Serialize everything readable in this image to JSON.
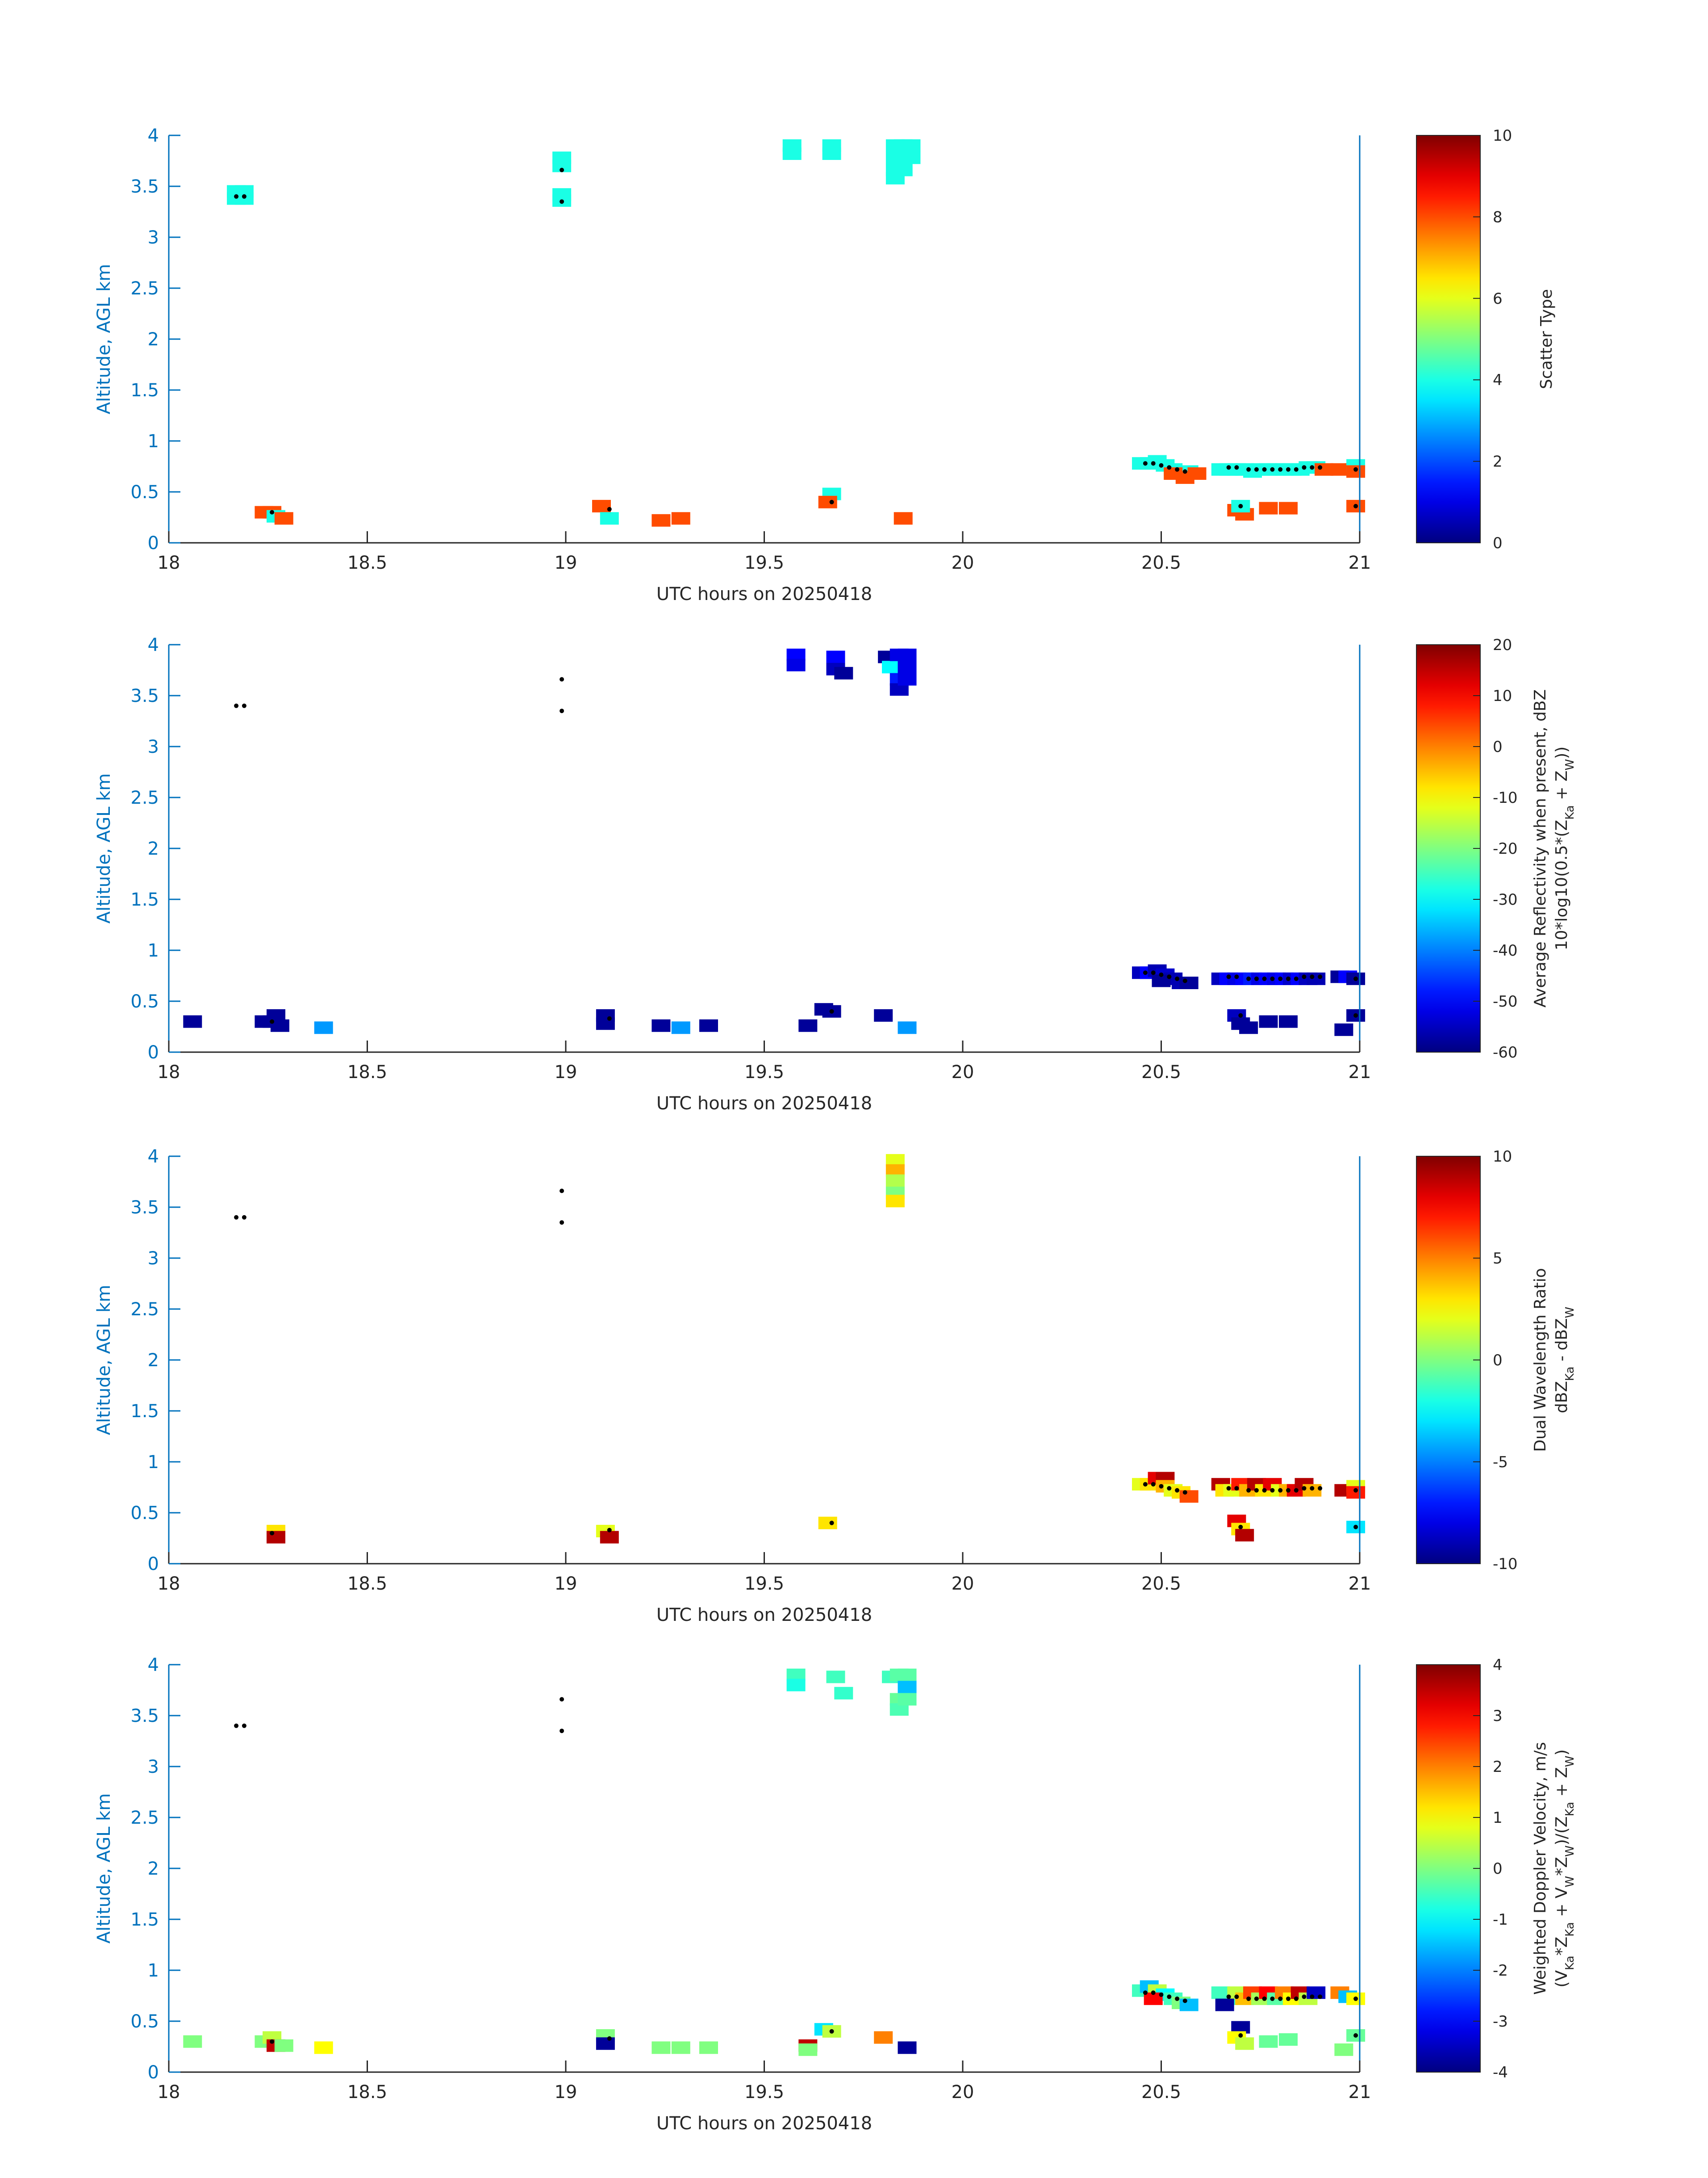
{
  "chart_data": [
    {
      "type": "heatmap",
      "xlabel": "UTC hours on 20250418",
      "ylabel": "Altitude, AGL km",
      "xlim": [
        18,
        21
      ],
      "ylim": [
        0,
        4
      ],
      "xticks": [
        "18",
        "18.5",
        "19",
        "19.5",
        "20",
        "20.5",
        "21"
      ],
      "yticks": [
        "0",
        "0.5",
        "1",
        "1.5",
        "2",
        "2.5",
        "3",
        "3.5",
        "4"
      ],
      "colorbar": {
        "label": [
          "Scatter Type"
        ],
        "range": [
          0,
          10
        ],
        "ticks": [
          "0",
          "2",
          "4",
          "6",
          "8",
          "10"
        ]
      },
      "cells": [
        [
          18.17,
          3.45,
          4
        ],
        [
          18.19,
          3.45,
          4
        ],
        [
          18.17,
          3.38,
          4
        ],
        [
          18.19,
          3.38,
          4
        ],
        [
          18.24,
          0.3,
          8
        ],
        [
          18.26,
          0.3,
          8
        ],
        [
          18.27,
          0.26,
          4
        ],
        [
          18.29,
          0.24,
          8
        ],
        [
          18.99,
          3.78,
          4
        ],
        [
          18.99,
          3.7,
          4
        ],
        [
          18.99,
          3.42,
          4
        ],
        [
          18.99,
          3.36,
          4
        ],
        [
          19.09,
          0.36,
          8
        ],
        [
          19.11,
          0.24,
          4
        ],
        [
          19.24,
          0.22,
          8
        ],
        [
          19.29,
          0.24,
          8
        ],
        [
          19.57,
          3.9,
          4
        ],
        [
          19.57,
          3.82,
          4
        ],
        [
          19.67,
          3.9,
          4
        ],
        [
          19.67,
          3.82,
          4
        ],
        [
          19.67,
          0.48,
          4
        ],
        [
          19.66,
          0.4,
          8
        ],
        [
          19.83,
          3.9,
          4
        ],
        [
          19.83,
          3.78,
          4
        ],
        [
          19.83,
          3.66,
          4
        ],
        [
          19.83,
          3.58,
          4
        ],
        [
          19.85,
          3.9,
          4
        ],
        [
          19.85,
          3.78,
          4
        ],
        [
          19.85,
          3.66,
          4
        ],
        [
          19.87,
          3.9,
          4
        ],
        [
          19.87,
          3.78,
          4
        ],
        [
          19.85,
          0.24,
          8
        ],
        [
          20.45,
          0.78,
          4
        ],
        [
          20.47,
          0.78,
          4
        ],
        [
          20.49,
          0.8,
          4
        ],
        [
          20.51,
          0.76,
          4
        ],
        [
          20.53,
          0.72,
          4
        ],
        [
          20.55,
          0.68,
          4
        ],
        [
          20.57,
          0.7,
          4
        ],
        [
          20.53,
          0.68,
          8
        ],
        [
          20.56,
          0.64,
          8
        ],
        [
          20.59,
          0.68,
          8
        ],
        [
          20.65,
          0.72,
          4
        ],
        [
          20.67,
          0.72,
          4
        ],
        [
          20.69,
          0.72,
          4
        ],
        [
          20.71,
          0.72,
          4
        ],
        [
          20.73,
          0.7,
          4
        ],
        [
          20.75,
          0.72,
          4
        ],
        [
          20.77,
          0.72,
          4
        ],
        [
          20.79,
          0.72,
          4
        ],
        [
          20.81,
          0.72,
          4
        ],
        [
          20.83,
          0.72,
          4
        ],
        [
          20.85,
          0.72,
          4
        ],
        [
          20.87,
          0.74,
          4
        ],
        [
          20.89,
          0.74,
          4
        ],
        [
          20.91,
          0.72,
          8
        ],
        [
          20.95,
          0.72,
          8
        ],
        [
          20.99,
          0.76,
          4
        ],
        [
          20.99,
          0.7,
          8
        ],
        [
          20.69,
          0.32,
          8
        ],
        [
          20.71,
          0.28,
          8
        ],
        [
          20.7,
          0.36,
          4
        ],
        [
          20.77,
          0.34,
          8
        ],
        [
          20.82,
          0.34,
          8
        ],
        [
          20.99,
          0.36,
          8
        ]
      ]
    },
    {
      "type": "heatmap",
      "xlabel": "UTC hours on 20250418",
      "ylabel": "Altitude, AGL km",
      "xlim": [
        18,
        21
      ],
      "ylim": [
        0,
        4
      ],
      "xticks": [
        "18",
        "18.5",
        "19",
        "19.5",
        "20",
        "20.5",
        "21"
      ],
      "yticks": [
        "0",
        "0.5",
        "1",
        "1.5",
        "2",
        "2.5",
        "3",
        "3.5",
        "4"
      ],
      "colorbar": {
        "label": [
          "Average Reflectivity when present, dBZ",
          "10*log10(0.5*(Z",
          "Ka",
          " + Z",
          "W",
          "))"
        ],
        "range": [
          -60,
          20
        ],
        "ticks": [
          "-60",
          "-50",
          "-40",
          "-30",
          "-20",
          "-10",
          "0",
          "10",
          "20"
        ]
      },
      "cells": [
        [
          18.06,
          0.3,
          -58
        ],
        [
          18.24,
          0.3,
          -58
        ],
        [
          18.26,
          0.3,
          -58
        ],
        [
          18.27,
          0.36,
          -58
        ],
        [
          18.28,
          0.26,
          -58
        ],
        [
          18.39,
          0.24,
          -38
        ],
        [
          19.1,
          0.36,
          -58
        ],
        [
          19.1,
          0.28,
          -58
        ],
        [
          19.24,
          0.26,
          -58
        ],
        [
          19.29,
          0.24,
          -38
        ],
        [
          19.36,
          0.26,
          -58
        ],
        [
          19.58,
          3.9,
          -50
        ],
        [
          19.58,
          3.8,
          -52
        ],
        [
          19.68,
          3.88,
          -50
        ],
        [
          19.68,
          3.76,
          -55
        ],
        [
          19.7,
          3.72,
          -58
        ],
        [
          19.61,
          0.26,
          -58
        ],
        [
          19.65,
          0.42,
          -58
        ],
        [
          19.67,
          0.4,
          -58
        ],
        [
          19.81,
          3.88,
          -58
        ],
        [
          19.82,
          3.78,
          -30
        ],
        [
          19.84,
          3.9,
          -52
        ],
        [
          19.84,
          3.66,
          -48
        ],
        [
          19.84,
          3.56,
          -55
        ],
        [
          19.86,
          3.9,
          -52
        ],
        [
          19.86,
          3.78,
          -52
        ],
        [
          19.86,
          3.66,
          -52
        ],
        [
          19.8,
          0.36,
          -58
        ],
        [
          19.86,
          0.24,
          -38
        ],
        [
          20.45,
          0.78,
          -55
        ],
        [
          20.47,
          0.78,
          -50
        ],
        [
          20.49,
          0.8,
          -56
        ],
        [
          20.51,
          0.76,
          -54
        ],
        [
          20.53,
          0.72,
          -56
        ],
        [
          20.55,
          0.68,
          -56
        ],
        [
          20.57,
          0.68,
          -58
        ],
        [
          20.5,
          0.7,
          -58
        ],
        [
          20.65,
          0.72,
          -55
        ],
        [
          20.67,
          0.72,
          -50
        ],
        [
          20.69,
          0.72,
          -52
        ],
        [
          20.71,
          0.72,
          -50
        ],
        [
          20.73,
          0.72,
          -48
        ],
        [
          20.75,
          0.72,
          -52
        ],
        [
          20.77,
          0.72,
          -50
        ],
        [
          20.79,
          0.72,
          -52
        ],
        [
          20.81,
          0.72,
          -50
        ],
        [
          20.83,
          0.72,
          -54
        ],
        [
          20.85,
          0.72,
          -50
        ],
        [
          20.87,
          0.72,
          -55
        ],
        [
          20.89,
          0.72,
          -56
        ],
        [
          20.95,
          0.74,
          -58
        ],
        [
          20.97,
          0.74,
          -50
        ],
        [
          20.99,
          0.72,
          -58
        ],
        [
          20.69,
          0.36,
          -55
        ],
        [
          20.7,
          0.28,
          -58
        ],
        [
          20.72,
          0.24,
          -58
        ],
        [
          20.77,
          0.3,
          -58
        ],
        [
          20.82,
          0.3,
          -58
        ],
        [
          20.96,
          0.22,
          -58
        ],
        [
          20.99,
          0.36,
          -58
        ]
      ]
    },
    {
      "type": "heatmap",
      "xlabel": "UTC hours on 20250418",
      "ylabel": "Altitude, AGL km",
      "xlim": [
        18,
        21
      ],
      "ylim": [
        0,
        4
      ],
      "xticks": [
        "18",
        "18.5",
        "19",
        "19.5",
        "20",
        "20.5",
        "21"
      ],
      "yticks": [
        "0",
        "0.5",
        "1",
        "1.5",
        "2",
        "2.5",
        "3",
        "3.5",
        "4"
      ],
      "colorbar": {
        "label": [
          "Dual Wavelength Ratio",
          "dBZ",
          "Ka",
          " - dBZ",
          "W"
        ],
        "range": [
          -10,
          10
        ],
        "ticks": [
          "-10",
          "-5",
          "0",
          "5",
          "10"
        ]
      },
      "cells": [
        [
          18.27,
          0.32,
          3
        ],
        [
          18.27,
          0.26,
          9
        ],
        [
          19.1,
          0.32,
          2
        ],
        [
          19.11,
          0.26,
          9
        ],
        [
          19.66,
          0.4,
          3
        ],
        [
          19.83,
          3.96,
          2
        ],
        [
          19.83,
          3.86,
          4
        ],
        [
          19.83,
          3.76,
          1
        ],
        [
          19.83,
          3.64,
          0
        ],
        [
          19.83,
          3.56,
          3
        ],
        [
          20.45,
          0.78,
          2
        ],
        [
          20.47,
          0.78,
          3
        ],
        [
          20.49,
          0.84,
          8
        ],
        [
          20.51,
          0.84,
          9
        ],
        [
          20.51,
          0.76,
          4
        ],
        [
          20.53,
          0.72,
          2
        ],
        [
          20.55,
          0.7,
          3
        ],
        [
          20.57,
          0.66,
          6
        ],
        [
          20.65,
          0.78,
          9
        ],
        [
          20.66,
          0.72,
          3
        ],
        [
          20.68,
          0.72,
          2
        ],
        [
          20.7,
          0.78,
          7
        ],
        [
          20.72,
          0.72,
          4
        ],
        [
          20.74,
          0.78,
          9
        ],
        [
          20.76,
          0.72,
          3
        ],
        [
          20.78,
          0.78,
          8
        ],
        [
          20.8,
          0.72,
          2
        ],
        [
          20.82,
          0.72,
          4
        ],
        [
          20.84,
          0.72,
          8
        ],
        [
          20.86,
          0.78,
          9
        ],
        [
          20.88,
          0.72,
          4
        ],
        [
          20.96,
          0.72,
          9
        ],
        [
          20.99,
          0.76,
          2
        ],
        [
          20.99,
          0.7,
          7
        ],
        [
          20.69,
          0.42,
          8
        ],
        [
          20.7,
          0.34,
          3
        ],
        [
          20.71,
          0.28,
          9
        ],
        [
          20.99,
          0.36,
          -3
        ]
      ]
    },
    {
      "type": "heatmap",
      "xlabel": "UTC hours on 20250418",
      "ylabel": "Altitude, AGL km",
      "xlim": [
        18,
        21
      ],
      "ylim": [
        0,
        4
      ],
      "xticks": [
        "18",
        "18.5",
        "19",
        "19.5",
        "20",
        "20.5",
        "21"
      ],
      "yticks": [
        "0",
        "0.5",
        "1",
        "1.5",
        "2",
        "2.5",
        "3",
        "3.5",
        "4"
      ],
      "colorbar": {
        "label": [
          "Weighted Doppler Velocity, m/s",
          "(V",
          "Ka",
          "*Z",
          "Ka",
          " + V",
          "W",
          "*Z",
          "W",
          ")/(Z",
          "Ka",
          " + Z",
          "W",
          ")"
        ],
        "range": [
          -4,
          4
        ],
        "ticks": [
          "-4",
          "-3",
          "-2",
          "-1",
          "0",
          "1",
          "2",
          "3",
          "4"
        ]
      },
      "cells": [
        [
          18.06,
          0.3,
          0
        ],
        [
          18.24,
          0.3,
          0
        ],
        [
          18.26,
          0.34,
          0.5
        ],
        [
          18.27,
          0.26,
          3.5
        ],
        [
          18.29,
          0.26,
          0
        ],
        [
          18.39,
          0.24,
          1
        ],
        [
          19.1,
          0.36,
          0
        ],
        [
          19.1,
          0.28,
          -3.8
        ],
        [
          19.24,
          0.24,
          0
        ],
        [
          19.29,
          0.24,
          0
        ],
        [
          19.36,
          0.24,
          0
        ],
        [
          19.58,
          3.9,
          -0.5
        ],
        [
          19.58,
          3.8,
          -0.8
        ],
        [
          19.68,
          3.88,
          -0.5
        ],
        [
          19.7,
          3.72,
          -0.6
        ],
        [
          19.61,
          0.26,
          3.5
        ],
        [
          19.61,
          0.22,
          0
        ],
        [
          19.65,
          0.42,
          -1.2
        ],
        [
          19.67,
          0.4,
          0.5
        ],
        [
          19.8,
          0.34,
          2
        ],
        [
          19.82,
          3.88,
          -0.5
        ],
        [
          19.84,
          3.9,
          -0.3
        ],
        [
          19.84,
          3.66,
          -0.2
        ],
        [
          19.84,
          3.56,
          -0.4
        ],
        [
          19.86,
          3.9,
          -0.3
        ],
        [
          19.86,
          3.78,
          -1.5
        ],
        [
          19.86,
          3.66,
          -0.3
        ],
        [
          19.86,
          0.24,
          -3.8
        ],
        [
          20.45,
          0.8,
          -0.5
        ],
        [
          20.47,
          0.84,
          -1.5
        ],
        [
          20.49,
          0.8,
          0.5
        ],
        [
          20.51,
          0.76,
          -1
        ],
        [
          20.53,
          0.72,
          -0.5
        ],
        [
          20.55,
          0.68,
          0
        ],
        [
          20.57,
          0.66,
          -1.5
        ],
        [
          20.48,
          0.72,
          3
        ],
        [
          20.65,
          0.78,
          -0.5
        ],
        [
          20.67,
          0.72,
          -0.5
        ],
        [
          20.69,
          0.78,
          0.5
        ],
        [
          20.71,
          0.72,
          1.5
        ],
        [
          20.73,
          0.78,
          2.5
        ],
        [
          20.75,
          0.72,
          0.3
        ],
        [
          20.77,
          0.78,
          3
        ],
        [
          20.79,
          0.72,
          -0.3
        ],
        [
          20.81,
          0.78,
          2
        ],
        [
          20.83,
          0.72,
          1
        ],
        [
          20.85,
          0.78,
          3.5
        ],
        [
          20.87,
          0.72,
          0.5
        ],
        [
          20.89,
          0.78,
          -3.5
        ],
        [
          20.95,
          0.78,
          2
        ],
        [
          20.97,
          0.74,
          -1.5
        ],
        [
          20.99,
          0.72,
          1
        ],
        [
          20.66,
          0.66,
          -3.8
        ],
        [
          20.7,
          0.44,
          -3.8
        ],
        [
          20.69,
          0.34,
          1
        ],
        [
          20.71,
          0.28,
          0.5
        ],
        [
          20.77,
          0.3,
          -0.2
        ],
        [
          20.82,
          0.32,
          -0.2
        ],
        [
          20.96,
          0.22,
          0
        ],
        [
          20.99,
          0.36,
          -0.2
        ]
      ]
    }
  ],
  "markers": [
    [
      18.17,
      3.4
    ],
    [
      18.19,
      3.4
    ],
    [
      18.99,
      3.66
    ],
    [
      18.99,
      3.35
    ],
    [
      18.26,
      0.3
    ],
    [
      19.11,
      0.33
    ],
    [
      19.67,
      0.4
    ],
    [
      20.46,
      0.78
    ],
    [
      20.48,
      0.78
    ],
    [
      20.5,
      0.76
    ],
    [
      20.52,
      0.74
    ],
    [
      20.54,
      0.72
    ],
    [
      20.56,
      0.7
    ],
    [
      20.67,
      0.74
    ],
    [
      20.69,
      0.74
    ],
    [
      20.72,
      0.72
    ],
    [
      20.74,
      0.72
    ],
    [
      20.76,
      0.72
    ],
    [
      20.78,
      0.72
    ],
    [
      20.8,
      0.72
    ],
    [
      20.82,
      0.72
    ],
    [
      20.84,
      0.72
    ],
    [
      20.86,
      0.74
    ],
    [
      20.88,
      0.74
    ],
    [
      20.9,
      0.74
    ],
    [
      20.7,
      0.36
    ],
    [
      20.99,
      0.72
    ],
    [
      20.99,
      0.36
    ]
  ],
  "colors": {
    "axis": "#0072BD",
    "text": "#262626",
    "marker": "#000000"
  }
}
